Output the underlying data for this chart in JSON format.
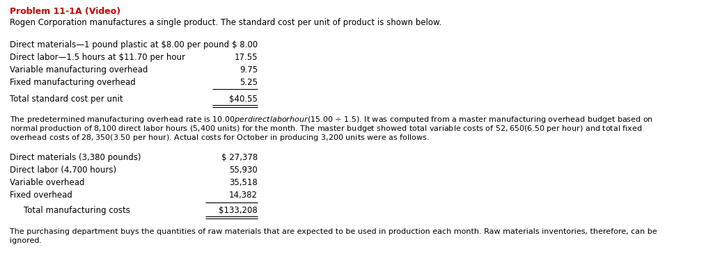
{
  "title": "Problem 11-1A (Video)",
  "title_color": "#CC0000",
  "background_color": "#FFFFFF",
  "intro_line": "Rogen Corporation manufactures a single product. The standard cost per unit of product is shown below.",
  "table1_rows": [
    {
      "label": "Direct materials—1 pound plastic at $8.00 per pound",
      "value": "$ 8.00",
      "is_total": false
    },
    {
      "label": "Direct labor—1.5 hours at $11.70 per hour",
      "value": "17.55",
      "is_total": false
    },
    {
      "label": "Variable manufacturing overhead",
      "value": "9.75",
      "is_total": false
    },
    {
      "label": "Fixed manufacturing overhead",
      "value": "5.25",
      "is_total": false
    },
    {
      "label": "Total standard cost per unit",
      "value": "$40.55",
      "is_total": true
    }
  ],
  "middle_para_lines": [
    "The predetermined manufacturing overhead rate is $10.00 per direct labor hour ($15.00 ÷ 1.5). It was computed from a master manufacturing overhead budget based on",
    "normal production of 8,100 direct labor hours (5,400 units) for the month. The master budget showed total variable costs of $52,650 ($6.50 per hour) and total fixed",
    "overhead costs of $28,350 ($3.50 per hour). Actual costs for October in producing 3,200 units were as follows."
  ],
  "table2_rows": [
    {
      "label": "Direct materials (3,380 pounds)",
      "value": "$ 27,378",
      "indent": false,
      "is_total": false
    },
    {
      "label": "Direct labor (4,700 hours)",
      "value": "55,930",
      "indent": false,
      "is_total": false
    },
    {
      "label": "Variable overhead",
      "value": "35,518",
      "indent": false,
      "is_total": false
    },
    {
      "label": "Fixed overhead",
      "value": "14,382",
      "indent": false,
      "is_total": false
    },
    {
      "label": "Total manufacturing costs",
      "value": "$133,208",
      "indent": true,
      "is_total": true
    }
  ],
  "footer_lines": [
    "The purchasing department buys the quantities of raw materials that are expected to be used in production each month. Raw materials inventories, therefore, can be",
    "ignored."
  ]
}
